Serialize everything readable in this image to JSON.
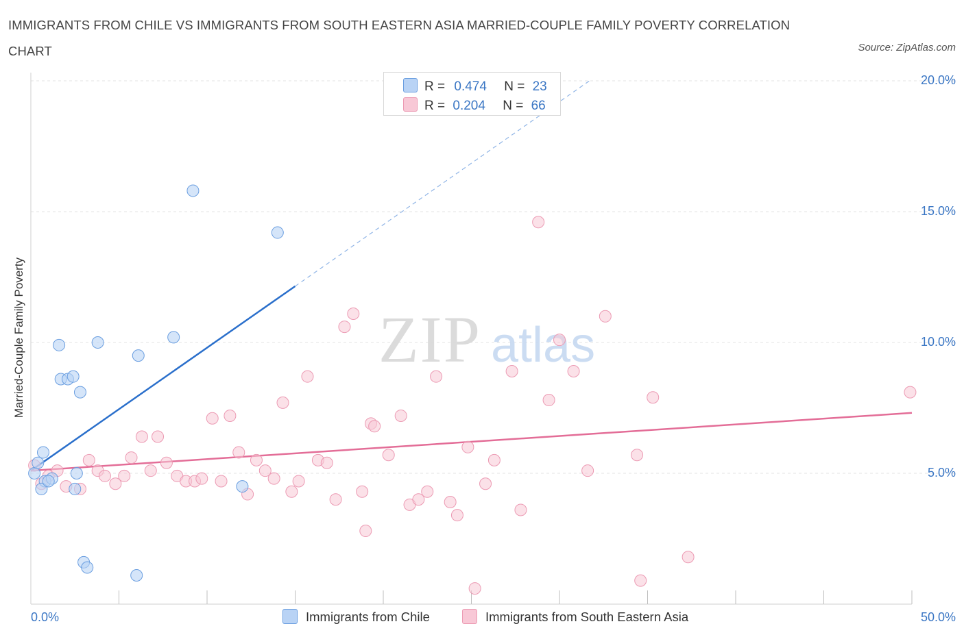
{
  "title": "IMMIGRANTS FROM CHILE VS IMMIGRANTS FROM SOUTH EASTERN ASIA MARRIED-COUPLE FAMILY POVERTY CORRELATION CHART",
  "source": "Source: ZipAtlas.com",
  "watermark": {
    "zip": "ZIP",
    "atlas": "atlas"
  },
  "legend": {
    "series1": {
      "r_label": "R =",
      "r_value": "0.474",
      "n_label": "N =",
      "n_value": "23"
    },
    "series2": {
      "r_label": "R =",
      "r_value": "0.204",
      "n_label": "N =",
      "n_value": "66"
    }
  },
  "colors": {
    "chile_fill": "#b9d3f5",
    "chile_stroke": "#6a9ee0",
    "chile_line": "#2a6fcb",
    "sea_fill": "#f8c8d6",
    "sea_stroke": "#ec9ab3",
    "sea_line": "#e36d97",
    "axis_label": "#3a76c4",
    "grid": "#e3e3e3"
  },
  "chart_data": {
    "type": "scatter",
    "title": "IMMIGRANTS FROM CHILE VS IMMIGRANTS FROM SOUTH EASTERN ASIA MARRIED-COUPLE FAMILY POVERTY CORRELATION CHART",
    "xlabel": "",
    "ylabel": "Married-Couple Family Poverty",
    "xlim": [
      0,
      50
    ],
    "ylim": [
      0,
      20.5
    ],
    "x_tick_labels": [
      {
        "value": 0,
        "label": "0.0%"
      },
      {
        "value": 50,
        "label": "50.0%"
      }
    ],
    "y_tick_labels": [
      {
        "value": 5,
        "label": "5.0%"
      },
      {
        "value": 10,
        "label": "10.0%"
      },
      {
        "value": 15,
        "label": "15.0%"
      },
      {
        "value": 20,
        "label": "20.0%"
      }
    ],
    "series": [
      {
        "name": "Immigrants from Chile",
        "color": "#6a9ee0",
        "trend": {
          "x_solid": [
            0,
            15
          ],
          "x_dashed": [
            15,
            31.7
          ],
          "intercept": 5.1,
          "slope": 0.47
        },
        "points": [
          [
            0.2,
            5.0
          ],
          [
            0.4,
            5.4
          ],
          [
            0.7,
            5.8
          ],
          [
            0.8,
            4.7
          ],
          [
            1.2,
            4.8
          ],
          [
            1.6,
            9.9
          ],
          [
            1.7,
            8.6
          ],
          [
            2.1,
            8.6
          ],
          [
            2.4,
            8.7
          ],
          [
            2.5,
            4.4
          ],
          [
            2.6,
            5.0
          ],
          [
            2.8,
            8.1
          ],
          [
            3.0,
            1.6
          ],
          [
            3.2,
            1.4
          ],
          [
            3.8,
            10.0
          ],
          [
            6.0,
            1.1
          ],
          [
            6.1,
            9.5
          ],
          [
            8.1,
            10.2
          ],
          [
            9.2,
            15.8
          ],
          [
            12.0,
            4.5
          ],
          [
            14.0,
            14.2
          ],
          [
            0.6,
            4.4
          ],
          [
            1.0,
            4.7
          ]
        ]
      },
      {
        "name": "Immigrants from South Eastern Asia",
        "color": "#ec9ab3",
        "trend": {
          "x_solid": [
            0,
            50
          ],
          "intercept": 5.1,
          "slope": 0.0442
        },
        "points": [
          [
            0.2,
            5.3
          ],
          [
            0.6,
            4.6
          ],
          [
            1.0,
            4.9
          ],
          [
            1.5,
            5.1
          ],
          [
            2.0,
            4.5
          ],
          [
            2.8,
            4.4
          ],
          [
            3.3,
            5.5
          ],
          [
            3.8,
            5.1
          ],
          [
            4.2,
            4.9
          ],
          [
            4.8,
            4.6
          ],
          [
            5.3,
            4.9
          ],
          [
            5.7,
            5.6
          ],
          [
            6.3,
            6.4
          ],
          [
            6.8,
            5.1
          ],
          [
            7.2,
            6.4
          ],
          [
            7.7,
            5.4
          ],
          [
            8.3,
            4.9
          ],
          [
            8.8,
            4.7
          ],
          [
            9.3,
            4.7
          ],
          [
            9.7,
            4.8
          ],
          [
            10.3,
            7.1
          ],
          [
            10.8,
            4.7
          ],
          [
            11.3,
            7.2
          ],
          [
            11.8,
            5.8
          ],
          [
            12.3,
            4.2
          ],
          [
            12.8,
            5.5
          ],
          [
            13.3,
            5.1
          ],
          [
            13.8,
            4.8
          ],
          [
            14.3,
            7.7
          ],
          [
            14.8,
            4.3
          ],
          [
            15.2,
            4.7
          ],
          [
            15.7,
            8.7
          ],
          [
            16.3,
            5.5
          ],
          [
            16.8,
            5.4
          ],
          [
            17.3,
            4.0
          ],
          [
            17.8,
            10.6
          ],
          [
            18.3,
            11.1
          ],
          [
            18.8,
            4.3
          ],
          [
            19.0,
            2.8
          ],
          [
            19.3,
            6.9
          ],
          [
            19.5,
            6.8
          ],
          [
            20.3,
            5.7
          ],
          [
            21.0,
            7.2
          ],
          [
            21.5,
            3.8
          ],
          [
            22.0,
            4.0
          ],
          [
            22.5,
            4.3
          ],
          [
            23.0,
            8.7
          ],
          [
            23.8,
            3.9
          ],
          [
            24.2,
            3.4
          ],
          [
            24.8,
            6.0
          ],
          [
            25.2,
            0.6
          ],
          [
            25.8,
            4.6
          ],
          [
            26.3,
            5.5
          ],
          [
            27.3,
            8.9
          ],
          [
            27.8,
            3.6
          ],
          [
            28.8,
            14.6
          ],
          [
            29.4,
            7.8
          ],
          [
            30.0,
            10.1
          ],
          [
            30.8,
            8.9
          ],
          [
            31.6,
            5.1
          ],
          [
            32.6,
            11.0
          ],
          [
            34.4,
            5.7
          ],
          [
            34.6,
            0.9
          ],
          [
            35.3,
            7.9
          ],
          [
            37.3,
            1.8
          ],
          [
            49.9,
            8.1
          ]
        ]
      }
    ]
  },
  "bottom_legend": {
    "item1": "Immigrants from Chile",
    "item2": "Immigrants from South Eastern Asia"
  }
}
